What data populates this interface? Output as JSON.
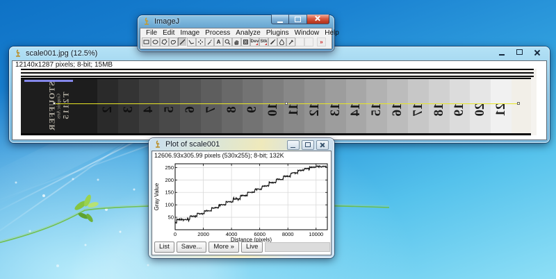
{
  "imagej_window": {
    "title": "ImageJ",
    "menus": [
      "File",
      "Edit",
      "Image",
      "Process",
      "Analyze",
      "Plugins",
      "Window",
      "Help"
    ],
    "tools": [
      {
        "name": "rectangle-tool"
      },
      {
        "name": "oval-tool"
      },
      {
        "name": "polygon-tool"
      },
      {
        "name": "freehand-tool"
      },
      {
        "name": "line-tool",
        "selected": true
      },
      {
        "name": "angle-tool"
      },
      {
        "name": "point-tool"
      },
      {
        "name": "wand-tool"
      },
      {
        "name": "text-tool"
      },
      {
        "name": "zoom-tool"
      },
      {
        "name": "hand-tool"
      },
      {
        "name": "dropper-tool"
      },
      {
        "name": "dev-menu-tool",
        "label": "Dev",
        "menu": true
      },
      {
        "name": "stk-menu-tool",
        "label": "Stk",
        "menu": true
      },
      {
        "name": "brush-tool"
      },
      {
        "name": "flood-fill-tool"
      },
      {
        "name": "pipette-tool"
      },
      {
        "name": "spare-tool-1",
        "blank": true
      },
      {
        "name": "spare-tool-2",
        "blank": true
      },
      {
        "name": "more-tools-button",
        "label": "»",
        "more": true
      }
    ]
  },
  "image_window": {
    "title": "scale001.jpg (12.5%)",
    "info": "12140x1287 pixels; 8-bit; 15MB",
    "selection_line_color": "#e8e625",
    "wedge": {
      "brand_lines": [
        "STOUFFER",
        "Graphic Arts",
        "T2115"
      ],
      "steps": [
        {
          "label": "2",
          "gray": "#2a2a2a"
        },
        {
          "label": "3",
          "gray": "#343434"
        },
        {
          "label": "4",
          "gray": "#3f3f3f"
        },
        {
          "label": "5",
          "gray": "#494949"
        },
        {
          "label": "6",
          "gray": "#545454"
        },
        {
          "label": "7",
          "gray": "#5e5e5e"
        },
        {
          "label": "8",
          "gray": "#696969"
        },
        {
          "label": "9",
          "gray": "#737373"
        },
        {
          "label": "10",
          "gray": "#7e7e7e"
        },
        {
          "label": "11",
          "gray": "#888888"
        },
        {
          "label": "12",
          "gray": "#929292"
        },
        {
          "label": "13",
          "gray": "#9d9d9d"
        },
        {
          "label": "14",
          "gray": "#a7a7a7"
        },
        {
          "label": "15",
          "gray": "#b2b2b2"
        },
        {
          "label": "16",
          "gray": "#bcbcbc"
        },
        {
          "label": "17",
          "gray": "#c7c7c7"
        },
        {
          "label": "18",
          "gray": "#d1d1d1"
        },
        {
          "label": "19",
          "gray": "#dcdcdc"
        },
        {
          "label": "20",
          "gray": "#e6e6e6"
        },
        {
          "label": "21",
          "gray": "#f1f1f1"
        }
      ]
    }
  },
  "plot_window": {
    "title": "Plot of scale001",
    "info": "12606.93x305.99 pixels (530x255); 8-bit; 132K",
    "buttons": [
      "List",
      "Save...",
      "More »",
      "Live"
    ]
  },
  "chart_data": {
    "type": "line",
    "title": "",
    "xlabel": "Distance (pixels)",
    "ylabel": "Gray Value",
    "xlim": [
      0,
      10800
    ],
    "ylim": [
      0,
      265
    ],
    "xticks": [
      0,
      2000,
      4000,
      6000,
      8000,
      10000
    ],
    "yticks": [
      50,
      100,
      150,
      200,
      250
    ],
    "grid": true,
    "legend": false,
    "line_color": "#151515",
    "series": [
      {
        "name": "gray_profile",
        "steps": [
          [
            0,
            120,
            28
          ],
          [
            120,
            1050,
            41
          ],
          [
            1050,
            1570,
            54
          ],
          [
            1570,
            2080,
            64
          ],
          [
            2080,
            2590,
            76
          ],
          [
            2590,
            3100,
            88
          ],
          [
            3100,
            3610,
            100
          ],
          [
            3610,
            4120,
            112
          ],
          [
            4120,
            4630,
            124
          ],
          [
            4630,
            5140,
            137
          ],
          [
            5140,
            5650,
            150
          ],
          [
            5650,
            6160,
            163
          ],
          [
            6160,
            6670,
            176
          ],
          [
            6670,
            7180,
            190
          ],
          [
            7180,
            7690,
            203
          ],
          [
            7690,
            8200,
            215
          ],
          [
            8200,
            8710,
            227
          ],
          [
            8710,
            9150,
            238
          ],
          [
            9150,
            9550,
            246
          ],
          [
            9550,
            10000,
            251
          ],
          [
            10000,
            10750,
            254
          ]
        ]
      }
    ]
  }
}
